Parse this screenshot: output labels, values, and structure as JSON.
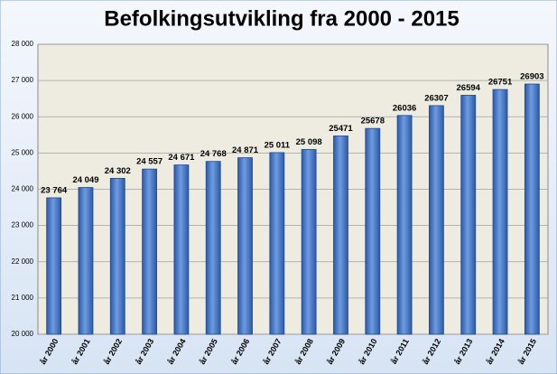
{
  "chart_data": {
    "type": "bar",
    "title": "Befolkingsutvikling fra 2000 - 2015",
    "categories": [
      "år 2000",
      "år 2001",
      "år 2002",
      "år 2003",
      "år 2004",
      "år 2005",
      "år 2006",
      "år 2007",
      "år 2008",
      "år 2009",
      "år 2010",
      "år 2011",
      "år 2012",
      "år 2013",
      "år 2014",
      "år 2015"
    ],
    "values": [
      23764,
      24049,
      24302,
      24557,
      24671,
      24768,
      24871,
      25011,
      25098,
      25471,
      25678,
      26036,
      26307,
      26594,
      26751,
      26903
    ],
    "value_labels": [
      "23 764",
      "24 049",
      "24 302",
      "24 557",
      "24 671",
      "24 768",
      "24 871",
      "25 011",
      "25 098",
      "25471",
      "25678",
      "26036",
      "26307",
      "26594",
      "26751",
      "26903"
    ],
    "color": "#3a6fc0",
    "ylim": [
      20000,
      28000
    ],
    "yticks": [
      {
        "value": 20000,
        "label": "20 000"
      },
      {
        "value": 21000,
        "label": "21 000"
      },
      {
        "value": 22000,
        "label": "22 000"
      },
      {
        "value": 23000,
        "label": "23 000"
      },
      {
        "value": 24000,
        "label": "24 000"
      },
      {
        "value": 25000,
        "label": "25 000"
      },
      {
        "value": 26000,
        "label": "26 000"
      },
      {
        "value": 27000,
        "label": "27 000"
      },
      {
        "value": 28000,
        "label": "28 000"
      }
    ],
    "grid": true
  }
}
